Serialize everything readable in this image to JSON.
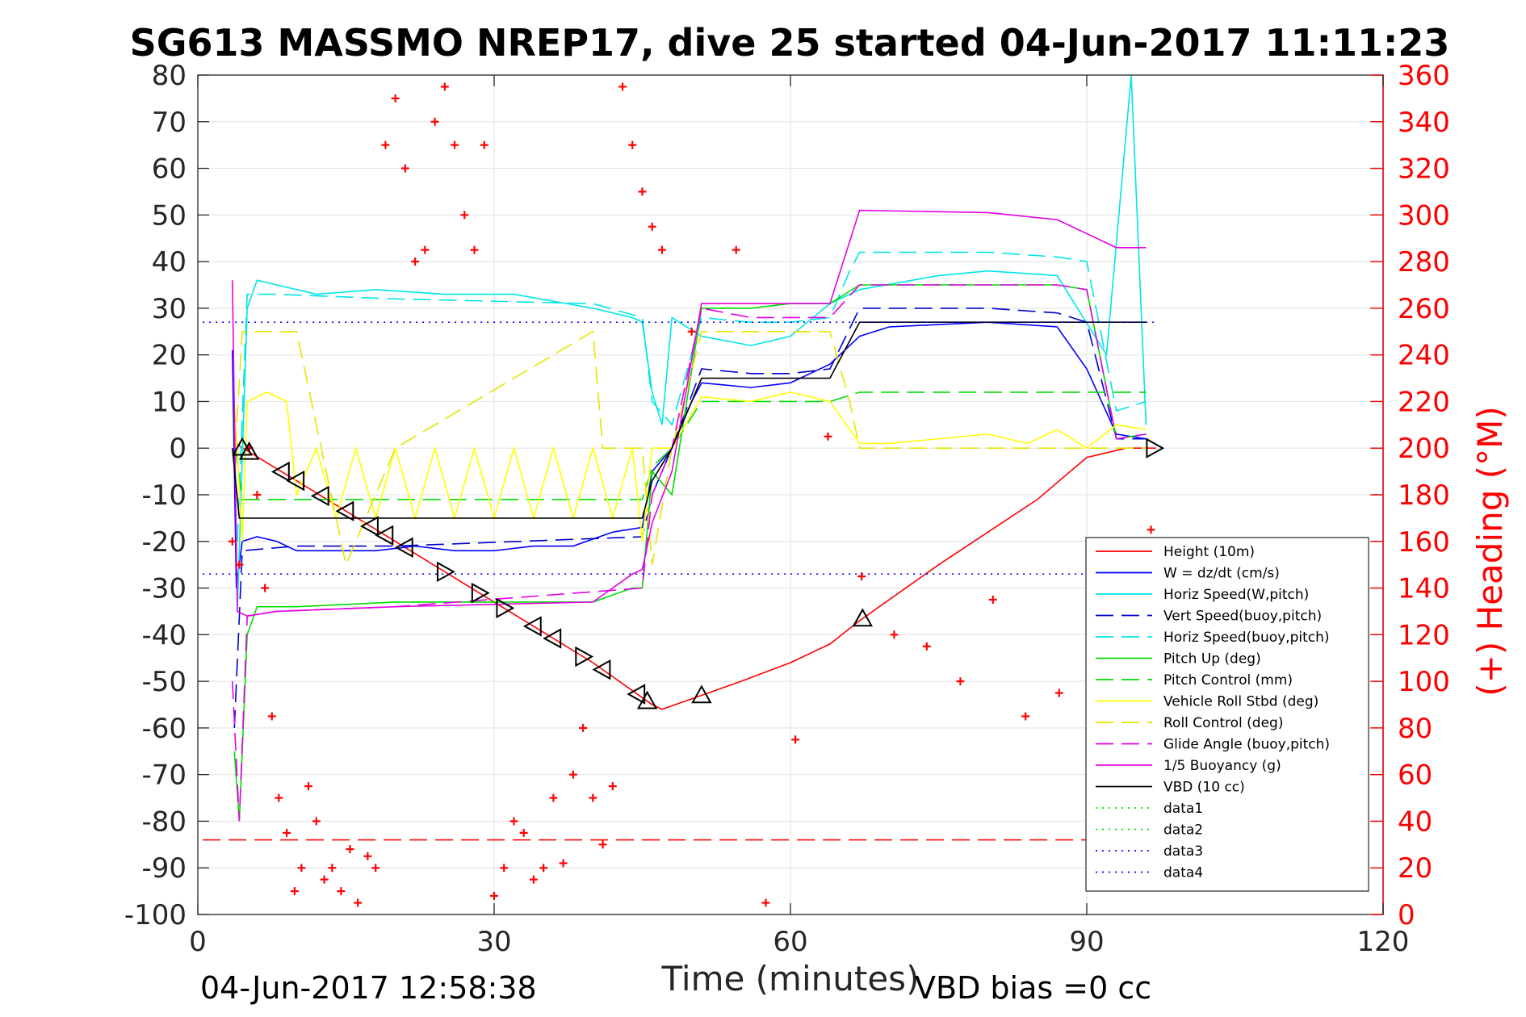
{
  "chart_data": {
    "type": "line",
    "title": "SG613 MASSMO NREP17, dive 25 started 04-Jun-2017 11:11:23",
    "xlabel": "Time (minutes)",
    "ylabel_right": "(+) Heading (°M)",
    "footer_left": "04-Jun-2017 12:58:38",
    "footer_right": "VBD bias =0 cc",
    "xlim": [
      0,
      120
    ],
    "ylim": [
      -100,
      80
    ],
    "ylim_right": [
      0,
      360
    ],
    "x_ticks": [
      "0",
      "30",
      "60",
      "90",
      "120"
    ],
    "y_ticks": [
      "80",
      "70",
      "60",
      "50",
      "40",
      "30",
      "20",
      "10",
      "0",
      "-10",
      "-20",
      "-30",
      "-40",
      "-50",
      "-60",
      "-70",
      "-80",
      "-90",
      "-100"
    ],
    "y_ticks_right": [
      "360",
      "340",
      "320",
      "300",
      "280",
      "260",
      "240",
      "220",
      "200",
      "180",
      "160",
      "140",
      "120",
      "100",
      "80",
      "60",
      "40",
      "20",
      "0"
    ],
    "grid": true,
    "legend_position": "lower-right",
    "series": [
      {
        "name": "Height (10m)",
        "color": "#ff0000",
        "dash": "solid",
        "x": [
          3.8,
          10,
          20,
          30,
          40,
          44,
          46,
          47,
          51,
          55,
          60,
          64,
          67,
          75,
          85,
          90,
          94,
          97
        ],
        "y": [
          1,
          -7,
          -20,
          -33,
          -46,
          -52,
          -55,
          -56,
          -53,
          -50,
          -46,
          -42,
          -37,
          -25,
          -11,
          -2,
          0,
          0
        ]
      },
      {
        "name": "W = dz/dt (cm/s)",
        "color": "#0000ff",
        "dash": "solid",
        "x": [
          3.5,
          3.9,
          4.5,
          6,
          8,
          10,
          14,
          18,
          22,
          26,
          30,
          34,
          38,
          42,
          45,
          46,
          48,
          50,
          51,
          56,
          60,
          64,
          67,
          70,
          80,
          87,
          90,
          93,
          96
        ],
        "y": [
          21,
          -30,
          -20,
          -19,
          -20,
          -22,
          -22,
          -22,
          -21,
          -22,
          -22,
          -21,
          -21,
          -18,
          -17,
          -5,
          0,
          10,
          14,
          13,
          14,
          18,
          24,
          26,
          27,
          26,
          17,
          3,
          2
        ]
      },
      {
        "name": "Horiz Speed(W,pitch)",
        "color": "#00e5e5",
        "dash": "solid",
        "x": [
          4,
          5,
          6,
          8,
          12,
          18,
          25,
          32,
          40,
          44,
          45,
          46,
          47,
          48,
          51,
          56,
          60,
          64,
          67,
          75,
          80,
          87,
          92,
          94.5,
          96
        ],
        "y": [
          -35,
          30,
          36,
          35,
          33,
          34,
          33,
          33,
          30,
          28,
          27,
          12,
          5,
          28,
          24,
          22,
          24,
          31,
          34,
          37,
          38,
          37,
          20,
          80,
          5
        ]
      },
      {
        "name": "Vert Speed(buoy,pitch)",
        "color": "#0000cc",
        "dash": "long",
        "x": [
          3.7,
          4.5,
          10,
          20,
          45,
          46,
          48,
          51,
          56,
          60,
          64,
          67,
          70,
          80,
          87,
          90,
          93,
          96
        ],
        "y": [
          -60,
          -22,
          -21,
          -21,
          -19,
          -10,
          0,
          17,
          16,
          16,
          17,
          30,
          30,
          30,
          29,
          27,
          2,
          2
        ]
      },
      {
        "name": "Horiz Speed(buoy,pitch)",
        "color": "#00e5e5",
        "dash": "long",
        "x": [
          4,
          5,
          8,
          20,
          40,
          45,
          46,
          48,
          51,
          56,
          60,
          64,
          66,
          67,
          70,
          80,
          87,
          90,
          93,
          96
        ],
        "y": [
          -20,
          33,
          33,
          32,
          31,
          28,
          10,
          5,
          28,
          27,
          27,
          28,
          38,
          42,
          42,
          42,
          41,
          40,
          8,
          10
        ]
      },
      {
        "name": "Pitch Up (deg)",
        "color": "#00dd00",
        "dash": "solid",
        "x": [
          3.7,
          4.2,
          5,
          6,
          10,
          20,
          30,
          40,
          44,
          45,
          46,
          48,
          51,
          56,
          60,
          64,
          67,
          70,
          80,
          87,
          90,
          93,
          96
        ],
        "y": [
          -65,
          -80,
          -40,
          -34,
          -34,
          -33,
          -33,
          -33,
          -30,
          -30,
          -5,
          -10,
          30,
          30,
          31,
          31,
          35,
          35,
          35,
          35,
          34,
          2,
          3
        ]
      },
      {
        "name": "Pitch Control (mm)",
        "color": "#00dd00",
        "dash": "long",
        "x": [
          3.8,
          4.5,
          45,
          46,
          48,
          51,
          56,
          60,
          64,
          67,
          70,
          80,
          90,
          96
        ],
        "y": [
          0,
          -11,
          -11,
          -4,
          0,
          10,
          10,
          10,
          10,
          12,
          12,
          12,
          12,
          12
        ]
      },
      {
        "name": "Vehicle Roll Stbd (deg)",
        "color": "#ffff00",
        "dash": "solid",
        "x": [
          3.7,
          4.5,
          5,
          7,
          9,
          10,
          12,
          14,
          16,
          18,
          20,
          22,
          24,
          26,
          28,
          30,
          32,
          34,
          36,
          38,
          40,
          42,
          44,
          45,
          46,
          48,
          51,
          56,
          60,
          64,
          67,
          70,
          80,
          84,
          87,
          90,
          93,
          96
        ],
        "y": [
          10,
          -20,
          10,
          12,
          10,
          -10,
          0,
          -15,
          0,
          -15,
          0,
          -15,
          0,
          -15,
          0,
          -15,
          0,
          -15,
          0,
          -15,
          0,
          -15,
          0,
          -20,
          0,
          0,
          11,
          10,
          12,
          10,
          1,
          1,
          3,
          1,
          4,
          0,
          5,
          4
        ]
      },
      {
        "name": "Roll Control (deg)",
        "color": "#e5e500",
        "dash": "long",
        "x": [
          3.8,
          4.5,
          10,
          15,
          20,
          40,
          41,
          45,
          46,
          48,
          51,
          56,
          60,
          64,
          66,
          67,
          90,
          96
        ],
        "y": [
          0,
          25,
          25,
          -25,
          0,
          25,
          0,
          0,
          -25,
          0,
          25,
          25,
          25,
          25,
          10,
          0,
          0,
          0
        ]
      },
      {
        "name": "Glide Angle (buoy,pitch)",
        "color": "#e500e5",
        "dash": "long",
        "x": [
          3.5,
          4.2,
          5,
          8,
          20,
          45,
          46,
          48,
          51,
          56,
          64,
          67,
          87,
          90,
          93,
          96
        ],
        "y": [
          -50,
          -80,
          -36,
          -35,
          -34,
          -30,
          -10,
          0,
          30,
          28,
          28,
          35,
          35,
          34,
          2,
          3
        ]
      },
      {
        "name": "1/5 Buoyancy (g)",
        "color": "#e500e5",
        "dash": "solid",
        "x": [
          3.5,
          4,
          5,
          8,
          20,
          40,
          44,
          45,
          46,
          48,
          51,
          56,
          64,
          67,
          80,
          87,
          90,
          93,
          96
        ],
        "y": [
          36,
          -35,
          -36,
          -35,
          -34,
          -33,
          -27,
          -26,
          -16,
          -5,
          31,
          31,
          31,
          51,
          50.5,
          49,
          46,
          43,
          43
        ]
      },
      {
        "name": "VBD (10 cc)",
        "color": "#000000",
        "dash": "solid",
        "x": [
          3.5,
          4.2,
          5,
          45,
          46,
          48,
          51,
          56,
          64,
          67,
          96
        ],
        "y": [
          0,
          -15,
          -15,
          -15,
          -7,
          0,
          15,
          15,
          15,
          27,
          27
        ]
      },
      {
        "name": "data1",
        "color": "#00dd00",
        "dash": "dot",
        "x": [
          0,
          0
        ],
        "y": [
          0,
          0
        ]
      },
      {
        "name": "data2",
        "color": "#00dd00",
        "dash": "dot",
        "x": [
          0,
          0
        ],
        "y": [
          0,
          0
        ]
      },
      {
        "name": "data3",
        "color": "#0000ff",
        "dash": "dot",
        "x": [
          0.5,
          97
        ],
        "y": [
          27,
          27
        ]
      },
      {
        "name": "data4",
        "color": "#0000ff",
        "dash": "dot",
        "x": [
          0.5,
          97
        ],
        "y": [
          -27,
          -27
        ]
      }
    ],
    "reference_lines": [
      {
        "color": "#ff0000",
        "dash": "long",
        "x": [
          0.5,
          97
        ],
        "y": [
          -84,
          -84
        ]
      }
    ],
    "heading_points_right_axis": {
      "color": "#ff0000",
      "x": [
        3.5,
        4.2,
        5.2,
        6,
        6.8,
        7.5,
        8.2,
        9,
        9.8,
        10.5,
        11.2,
        12,
        12.8,
        13.6,
        14.5,
        15.4,
        16.2,
        17.2,
        18,
        19,
        20,
        21,
        22,
        23,
        24,
        25,
        26,
        27,
        28,
        29,
        30,
        31,
        32,
        33,
        34,
        35,
        36,
        37,
        38,
        39,
        40,
        41,
        42,
        43,
        44,
        45,
        46,
        47,
        50,
        54.5,
        57.5,
        60.5,
        63.8,
        67.2,
        70.5,
        73.8,
        77.2,
        80.5,
        83.8,
        87.2,
        96.5
      ],
      "y": [
        160,
        150,
        200,
        180,
        140,
        85,
        50,
        35,
        10,
        20,
        55,
        40,
        15,
        20,
        10,
        28,
        5,
        25,
        20,
        330,
        350,
        320,
        280,
        285,
        340,
        355,
        330,
        300,
        285,
        330,
        8,
        20,
        40,
        35,
        15,
        20,
        50,
        22,
        60,
        80,
        50,
        30,
        55,
        355,
        330,
        310,
        295,
        285,
        250,
        285,
        5,
        75,
        205,
        145,
        120,
        115,
        100,
        135,
        85,
        95,
        165
      ]
    },
    "markers": {
      "color": "#000000",
      "triangles_on_height": [
        {
          "x": 4.5,
          "dir": "up"
        },
        {
          "x": 5.2,
          "dir": "up"
        },
        {
          "x": 8.5,
          "dir": "left"
        },
        {
          "x": 10,
          "dir": "left"
        },
        {
          "x": 12.5,
          "dir": "left"
        },
        {
          "x": 15,
          "dir": "left"
        },
        {
          "x": 17.5,
          "dir": "left"
        },
        {
          "x": 19,
          "dir": "left"
        },
        {
          "x": 21,
          "dir": "left"
        },
        {
          "x": 25,
          "dir": "right"
        },
        {
          "x": 28.5,
          "dir": "right"
        },
        {
          "x": 31,
          "dir": "right"
        },
        {
          "x": 34,
          "dir": "left"
        },
        {
          "x": 36,
          "dir": "left"
        },
        {
          "x": 39,
          "dir": "right"
        },
        {
          "x": 41,
          "dir": "left"
        },
        {
          "x": 44.5,
          "dir": "left"
        },
        {
          "x": 45.5,
          "dir": "up"
        },
        {
          "x": 51,
          "dir": "up"
        },
        {
          "x": 67.3,
          "dir": "up"
        },
        {
          "x": 96.8,
          "dir": "right"
        }
      ]
    }
  }
}
